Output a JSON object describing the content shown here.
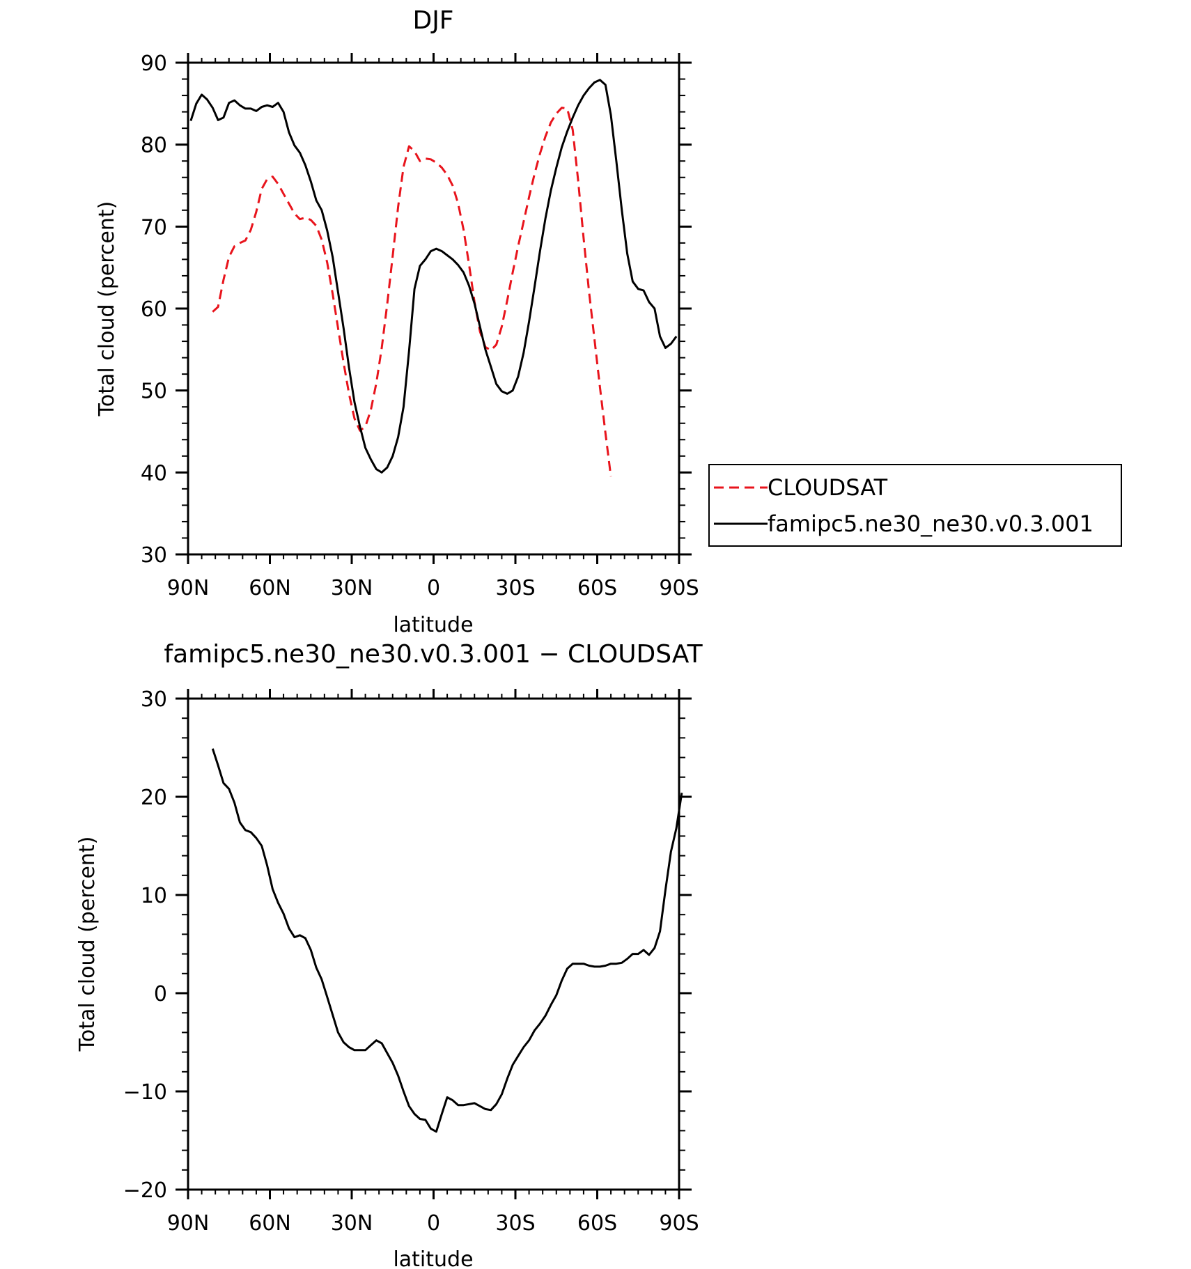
{
  "chart_data": [
    {
      "type": "line",
      "title": "DJF",
      "xlabel": "latitude",
      "ylabel": "Total cloud (percent)",
      "xlim": [
        90,
        -90
      ],
      "ylim": [
        30,
        90
      ],
      "xticks": [
        {
          "value": 90,
          "label": "90N"
        },
        {
          "value": 60,
          "label": "60N"
        },
        {
          "value": 30,
          "label": "30N"
        },
        {
          "value": 0,
          "label": "0"
        },
        {
          "value": -30,
          "label": "30S"
        },
        {
          "value": -60,
          "label": "60S"
        },
        {
          "value": -90,
          "label": "90S"
        }
      ],
      "yticks": [
        {
          "value": 30,
          "label": "30"
        },
        {
          "value": 40,
          "label": "40"
        },
        {
          "value": 50,
          "label": "50"
        },
        {
          "value": 60,
          "label": "60"
        },
        {
          "value": 70,
          "label": "70"
        },
        {
          "value": 80,
          "label": "80"
        },
        {
          "value": 90,
          "label": "90"
        }
      ],
      "legend": "right",
      "series": [
        {
          "name": "CLOUDSAT",
          "color": "#e8141c",
          "dash": true,
          "points": [
            [
              81,
              59.6
            ],
            [
              79,
              60.2
            ],
            [
              77,
              63.5
            ],
            [
              75,
              66.3
            ],
            [
              73,
              67.6
            ],
            [
              71,
              68.0
            ],
            [
              69,
              68.3
            ],
            [
              67,
              69.6
            ],
            [
              65,
              71.8
            ],
            [
              63,
              74.6
            ],
            [
              61,
              75.8
            ],
            [
              59,
              76.1
            ],
            [
              57,
              75.2
            ],
            [
              55,
              74.0
            ],
            [
              53,
              72.8
            ],
            [
              51,
              71.6
            ],
            [
              49,
              70.9
            ],
            [
              47,
              71.1
            ],
            [
              45,
              70.8
            ],
            [
              43,
              70.1
            ],
            [
              41,
              68.4
            ],
            [
              39,
              65.6
            ],
            [
              37,
              61.8
            ],
            [
              35,
              57.6
            ],
            [
              33,
              53.4
            ],
            [
              31,
              49.6
            ],
            [
              29,
              46.6
            ],
            [
              27,
              45.1
            ],
            [
              25,
              45.6
            ],
            [
              23,
              47.6
            ],
            [
              21,
              50.9
            ],
            [
              19,
              55.2
            ],
            [
              17,
              60.5
            ],
            [
              15,
              66.4
            ],
            [
              13,
              72.4
            ],
            [
              11,
              77.3
            ],
            [
              9,
              79.8
            ],
            [
              7,
              79.2
            ],
            [
              5,
              78.0
            ],
            [
              3,
              78.3
            ],
            [
              1,
              78.2
            ],
            [
              -1,
              77.8
            ],
            [
              -3,
              77.2
            ],
            [
              -5,
              76.3
            ],
            [
              -7,
              75.0
            ],
            [
              -9,
              72.8
            ],
            [
              -11,
              69.6
            ],
            [
              -13,
              65.4
            ],
            [
              -15,
              60.8
            ],
            [
              -17,
              57.2
            ],
            [
              -19,
              55.3
            ],
            [
              -21,
              54.9
            ],
            [
              -23,
              55.6
            ],
            [
              -25,
              57.8
            ],
            [
              -27,
              61.0
            ],
            [
              -29,
              64.4
            ],
            [
              -31,
              67.6
            ],
            [
              -33,
              70.6
            ],
            [
              -35,
              73.6
            ],
            [
              -37,
              76.4
            ],
            [
              -39,
              78.9
            ],
            [
              -41,
              81.0
            ],
            [
              -43,
              82.7
            ],
            [
              -45,
              83.8
            ],
            [
              -47,
              84.5
            ],
            [
              -49,
              84.4
            ],
            [
              -51,
              81.8
            ],
            [
              -53,
              75.6
            ],
            [
              -55,
              68.6
            ],
            [
              -57,
              62.0
            ],
            [
              -59,
              56.2
            ],
            [
              -61,
              50.4
            ],
            [
              -63,
              44.8
            ],
            [
              -65,
              39.5
            ]
          ]
        },
        {
          "name": "famipc5.ne30_ne30.v0.3.001",
          "color": "#000000",
          "dash": false,
          "points": [
            [
              89,
              82.9
            ],
            [
              87,
              85.0
            ],
            [
              85,
              86.1
            ],
            [
              83,
              85.5
            ],
            [
              81,
              84.5
            ],
            [
              79,
              83.0
            ],
            [
              77,
              83.3
            ],
            [
              75,
              85.1
            ],
            [
              73,
              85.4
            ],
            [
              71,
              84.8
            ],
            [
              69,
              84.4
            ],
            [
              67,
              84.4
            ],
            [
              65,
              84.1
            ],
            [
              63,
              84.6
            ],
            [
              61,
              84.8
            ],
            [
              59,
              84.6
            ],
            [
              57,
              85.1
            ],
            [
              55,
              84.0
            ],
            [
              53,
              81.5
            ],
            [
              51,
              79.9
            ],
            [
              49,
              79.0
            ],
            [
              47,
              77.5
            ],
            [
              45,
              75.5
            ],
            [
              43,
              73.2
            ],
            [
              41,
              72.0
            ],
            [
              39,
              69.5
            ],
            [
              37,
              66.3
            ],
            [
              35,
              62.0
            ],
            [
              33,
              57.6
            ],
            [
              31,
              52.8
            ],
            [
              29,
              48.6
            ],
            [
              27,
              45.6
            ],
            [
              25,
              43.0
            ],
            [
              23,
              41.6
            ],
            [
              21,
              40.4
            ],
            [
              19,
              40.0
            ],
            [
              17,
              40.6
            ],
            [
              15,
              42.0
            ],
            [
              13,
              44.3
            ],
            [
              11,
              48.0
            ],
            [
              9,
              54.8
            ],
            [
              7,
              62.4
            ],
            [
              5,
              65.2
            ],
            [
              3,
              66.0
            ],
            [
              1,
              67.0
            ],
            [
              -1,
              67.3
            ],
            [
              -3,
              67.0
            ],
            [
              -5,
              66.5
            ],
            [
              -7,
              66.0
            ],
            [
              -9,
              65.3
            ],
            [
              -11,
              64.4
            ],
            [
              -13,
              62.8
            ],
            [
              -15,
              60.6
            ],
            [
              -17,
              57.8
            ],
            [
              -19,
              55.0
            ],
            [
              -21,
              52.9
            ],
            [
              -23,
              50.8
            ],
            [
              -25,
              49.9
            ],
            [
              -27,
              49.6
            ],
            [
              -29,
              50.0
            ],
            [
              -31,
              51.7
            ],
            [
              -33,
              54.6
            ],
            [
              -35,
              58.4
            ],
            [
              -37,
              62.6
            ],
            [
              -39,
              67.0
            ],
            [
              -41,
              71.0
            ],
            [
              -43,
              74.4
            ],
            [
              -45,
              77.2
            ],
            [
              -47,
              79.7
            ],
            [
              -49,
              81.6
            ],
            [
              -51,
              83.3
            ],
            [
              -53,
              84.8
            ],
            [
              -55,
              86.0
            ],
            [
              -57,
              86.9
            ],
            [
              -59,
              87.6
            ],
            [
              -61,
              87.9
            ],
            [
              -63,
              87.3
            ],
            [
              -65,
              83.6
            ],
            [
              -67,
              78.0
            ],
            [
              -69,
              72.0
            ],
            [
              -71,
              66.7
            ],
            [
              -73,
              63.3
            ],
            [
              -75,
              62.4
            ],
            [
              -77,
              62.2
            ],
            [
              -79,
              60.8
            ],
            [
              -81,
              60.0
            ],
            [
              -83,
              56.6
            ],
            [
              -85,
              55.2
            ],
            [
              -87,
              55.7
            ],
            [
              -89,
              56.6
            ]
          ]
        }
      ]
    },
    {
      "type": "line",
      "title": "famipc5.ne30_ne30.v0.3.001 − CLOUDSAT",
      "xlabel": "latitude",
      "ylabel": "Total cloud (percent)",
      "xlim": [
        90,
        -90
      ],
      "ylim": [
        -20,
        30
      ],
      "xticks": [
        {
          "value": 90,
          "label": "90N"
        },
        {
          "value": 60,
          "label": "60N"
        },
        {
          "value": 30,
          "label": "30N"
        },
        {
          "value": 0,
          "label": "0"
        },
        {
          "value": -30,
          "label": "30S"
        },
        {
          "value": -60,
          "label": "60S"
        },
        {
          "value": -90,
          "label": "90S"
        }
      ],
      "yticks": [
        {
          "value": -20,
          "label": "−20"
        },
        {
          "value": -10,
          "label": "−10"
        },
        {
          "value": 0,
          "label": "0"
        },
        {
          "value": 10,
          "label": "10"
        },
        {
          "value": 20,
          "label": "20"
        },
        {
          "value": 30,
          "label": "30"
        }
      ],
      "series": [
        {
          "color": "#000000",
          "dash": false,
          "points": [
            [
              81,
              24.9
            ],
            [
              79,
              23.2
            ],
            [
              77,
              21.4
            ],
            [
              75,
              20.8
            ],
            [
              73,
              19.4
            ],
            [
              71,
              17.4
            ],
            [
              69,
              16.6
            ],
            [
              67,
              16.4
            ],
            [
              65,
              15.8
            ],
            [
              63,
              15.0
            ],
            [
              61,
              13.0
            ],
            [
              59,
              10.6
            ],
            [
              57,
              9.2
            ],
            [
              55,
              8.1
            ],
            [
              53,
              6.6
            ],
            [
              51,
              5.7
            ],
            [
              49,
              5.9
            ],
            [
              47,
              5.6
            ],
            [
              45,
              4.4
            ],
            [
              43,
              2.6
            ],
            [
              41,
              1.4
            ],
            [
              39,
              -0.4
            ],
            [
              37,
              -2.2
            ],
            [
              35,
              -4.0
            ],
            [
              33,
              -5.0
            ],
            [
              31,
              -5.5
            ],
            [
              29,
              -5.8
            ],
            [
              27,
              -5.8
            ],
            [
              25,
              -5.8
            ],
            [
              23,
              -5.3
            ],
            [
              21,
              -4.8
            ],
            [
              19,
              -5.1
            ],
            [
              17,
              -6.1
            ],
            [
              15,
              -7.1
            ],
            [
              13,
              -8.4
            ],
            [
              11,
              -10.0
            ],
            [
              9,
              -11.5
            ],
            [
              7,
              -12.3
            ],
            [
              5,
              -12.8
            ],
            [
              3,
              -12.9
            ],
            [
              1,
              -13.8
            ],
            [
              -1,
              -14.1
            ],
            [
              -3,
              -12.3
            ],
            [
              -5,
              -10.6
            ],
            [
              -7,
              -10.9
            ],
            [
              -9,
              -11.4
            ],
            [
              -11,
              -11.4
            ],
            [
              -13,
              -11.3
            ],
            [
              -15,
              -11.2
            ],
            [
              -17,
              -11.5
            ],
            [
              -19,
              -11.8
            ],
            [
              -21,
              -11.9
            ],
            [
              -23,
              -11.3
            ],
            [
              -25,
              -10.3
            ],
            [
              -27,
              -8.7
            ],
            [
              -29,
              -7.3
            ],
            [
              -31,
              -6.4
            ],
            [
              -33,
              -5.5
            ],
            [
              -35,
              -4.8
            ],
            [
              -37,
              -3.8
            ],
            [
              -39,
              -3.1
            ],
            [
              -41,
              -2.3
            ],
            [
              -43,
              -1.2
            ],
            [
              -45,
              -0.2
            ],
            [
              -47,
              1.3
            ],
            [
              -49,
              2.5
            ],
            [
              -51,
              3.0
            ],
            [
              -53,
              3.0
            ],
            [
              -55,
              3.0
            ],
            [
              -57,
              2.8
            ],
            [
              -59,
              2.7
            ],
            [
              -61,
              2.7
            ],
            [
              -63,
              2.8
            ],
            [
              -65,
              3.0
            ],
            [
              -67,
              3.0
            ],
            [
              -69,
              3.1
            ],
            [
              -71,
              3.5
            ],
            [
              -73,
              4.0
            ],
            [
              -75,
              4.0
            ],
            [
              -77,
              4.4
            ],
            [
              -79,
              3.9
            ],
            [
              -81,
              4.6
            ],
            [
              -83,
              6.3
            ],
            [
              -85,
              10.5
            ],
            [
              -87,
              14.4
            ],
            [
              -89,
              16.8
            ],
            [
              -91,
              20.4
            ]
          ]
        }
      ]
    }
  ]
}
